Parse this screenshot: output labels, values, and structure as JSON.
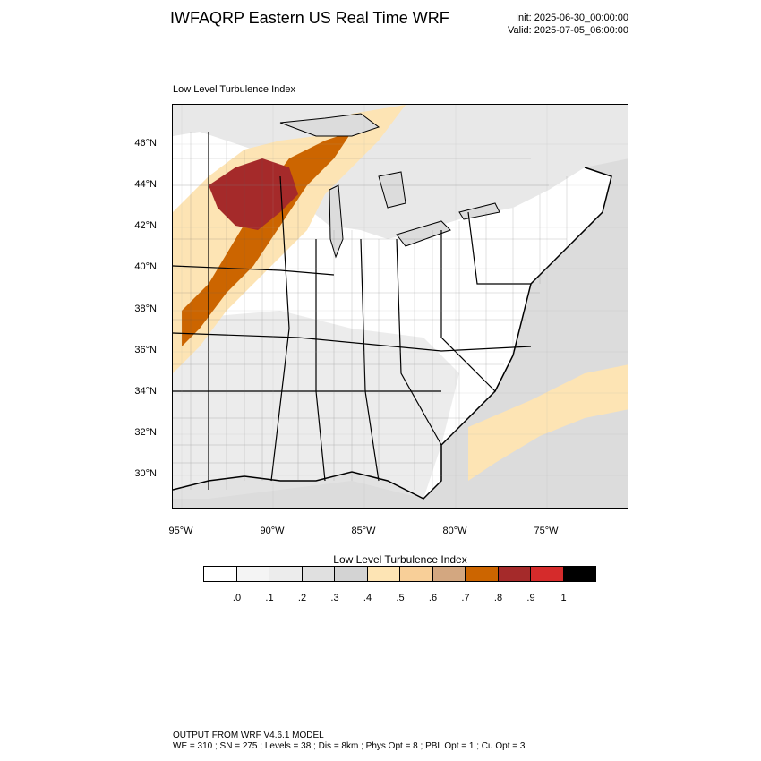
{
  "header": {
    "title": "IWFAQRP Eastern US Real Time WRF",
    "init": "Init: 2025-06-30_00:00:00",
    "valid": "Valid: 2025-07-05_06:00:00"
  },
  "map": {
    "field_label": "Low Level Turbulence Index",
    "lat_ticks": [
      "46°N",
      "44°N",
      "42°N",
      "40°N",
      "38°N",
      "36°N",
      "34°N",
      "32°N",
      "30°N"
    ],
    "lon_ticks": [
      "95°W",
      "90°W",
      "85°W",
      "80°W",
      "75°W"
    ],
    "colors": {
      "ocean": "#dcdcdc",
      "land": "#ffffff",
      "land_gray": "#e6e6e6",
      "boundary": "#000000"
    }
  },
  "colorbar": {
    "title": "Low Level Turbulence Index",
    "colors": [
      "#ffffff",
      "#f4f4f4",
      "#ececec",
      "#e0e0e0",
      "#d3d3d3",
      "#fde4b4",
      "#f8cf98",
      "#d3a780",
      "#cc6500",
      "#a52a2a",
      "#d52b2b",
      "#000000"
    ],
    "labels": [
      ".0",
      ".1",
      ".2",
      ".3",
      ".4",
      ".5",
      ".6",
      ".7",
      ".8",
      ".9",
      "1"
    ]
  },
  "footer": {
    "line1": "OUTPUT FROM WRF V4.6.1 MODEL",
    "line2": "WE = 310 ; SN = 275 ; Levels = 38 ; Dis = 8km ; Phys Opt = 8 ; PBL Opt = 1 ; Cu Opt = 3"
  }
}
